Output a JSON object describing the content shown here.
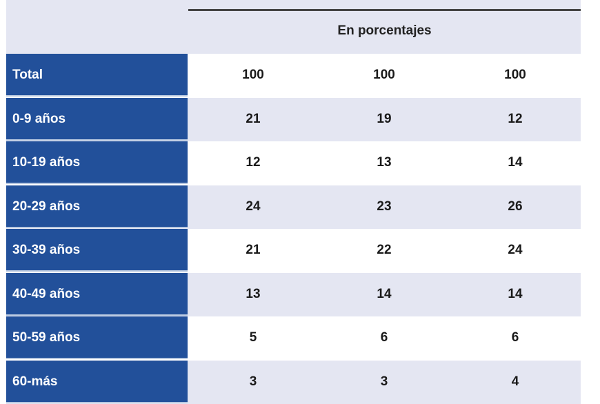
{
  "table": {
    "unit_label": "En porcentajes",
    "colors": {
      "label_bg": "#22509a",
      "stripe_bg": "#e4e6f2"
    },
    "rows": [
      {
        "label": "Total",
        "values": [
          "100",
          "100",
          "100"
        ]
      },
      {
        "label": "0-9 años",
        "values": [
          "21",
          "19",
          "12"
        ]
      },
      {
        "label": "10-19 años",
        "values": [
          "12",
          "13",
          "14"
        ]
      },
      {
        "label": "20-29 años",
        "values": [
          "24",
          "23",
          "26"
        ]
      },
      {
        "label": "30-39 años",
        "values": [
          "21",
          "22",
          "24"
        ]
      },
      {
        "label": "40-49 años",
        "values": [
          "13",
          "14",
          "14"
        ]
      },
      {
        "label": "50-59 años",
        "values": [
          "5",
          "6",
          "6"
        ]
      },
      {
        "label": "60-más",
        "values": [
          "3",
          "3",
          "4"
        ]
      }
    ]
  }
}
